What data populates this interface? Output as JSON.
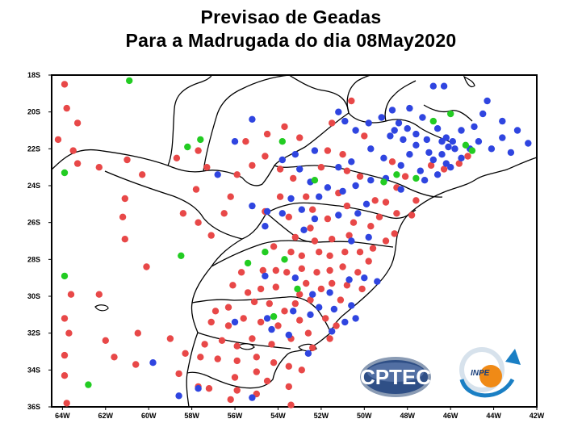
{
  "title": {
    "line1": "Previsao  de  Geadas",
    "line2": "Para a Madrugada do dia 08May2020"
  },
  "map": {
    "lat_ticks": [
      "18S",
      "20S",
      "22S",
      "24S",
      "26S",
      "28S",
      "30S",
      "32S",
      "34S",
      "36S"
    ],
    "lon_ticks": [
      "64W",
      "62W",
      "60W",
      "58W",
      "56W",
      "54W",
      "52W",
      "50W",
      "48W",
      "46W",
      "44W",
      "42W"
    ],
    "lat_range": [
      -36,
      -18
    ],
    "lon_range": [
      -64.5,
      -42
    ],
    "colors": {
      "red": "#e84848",
      "blue": "#2f45e0",
      "green": "#22cc22",
      "frame": "#000000"
    },
    "points": {
      "red": [
        [
          -63.9,
          -18.5
        ],
        [
          -63.8,
          -19.8
        ],
        [
          -63.3,
          -20.6
        ],
        [
          -64.2,
          -21.5
        ],
        [
          -63.5,
          -22.1
        ],
        [
          -63.3,
          -22.8
        ],
        [
          -62.3,
          -23.0
        ],
        [
          -61.0,
          -22.6
        ],
        [
          -60.3,
          -23.4
        ],
        [
          -61.1,
          -24.7
        ],
        [
          -61.2,
          -25.7
        ],
        [
          -61.1,
          -26.9
        ],
        [
          -60.1,
          -28.4
        ],
        [
          -63.6,
          -29.9
        ],
        [
          -62.3,
          -29.9
        ],
        [
          -63.9,
          -31.2
        ],
        [
          -63.7,
          -32.0
        ],
        [
          -62.0,
          -32.4
        ],
        [
          -63.9,
          -33.2
        ],
        [
          -63.9,
          -34.3
        ],
        [
          -60.5,
          -32.0
        ],
        [
          -61.6,
          -33.3
        ],
        [
          -60.6,
          -33.7
        ],
        [
          -59.0,
          -32.3
        ],
        [
          -58.3,
          -33.1
        ],
        [
          -58.6,
          -34.2
        ],
        [
          -57.7,
          -34.9
        ],
        [
          -63.8,
          -35.8
        ],
        [
          -58.7,
          -22.5
        ],
        [
          -57.7,
          -22.1
        ],
        [
          -57.3,
          -23.0
        ],
        [
          -57.8,
          -24.2
        ],
        [
          -58.4,
          -25.5
        ],
        [
          -57.7,
          -26.0
        ],
        [
          -57.1,
          -26.7
        ],
        [
          -56.5,
          -25.5
        ],
        [
          -56.2,
          -24.6
        ],
        [
          -55.9,
          -23.4
        ],
        [
          -55.2,
          -22.9
        ],
        [
          -55.5,
          -21.6
        ],
        [
          -54.5,
          -21.2
        ],
        [
          -54.6,
          -22.4
        ],
        [
          -53.7,
          -20.8
        ],
        [
          -53.0,
          -21.4
        ],
        [
          -51.5,
          -20.6
        ],
        [
          -50.6,
          -19.4
        ],
        [
          -53.9,
          -23.1
        ],
        [
          -53.3,
          -23.6
        ],
        [
          -53.9,
          -24.6
        ],
        [
          -54.6,
          -25.4
        ],
        [
          -53.5,
          -25.7
        ],
        [
          -52.7,
          -24.6
        ],
        [
          -52.4,
          -25.3
        ],
        [
          -52.5,
          -26.3
        ],
        [
          -51.7,
          -25.8
        ],
        [
          -51.2,
          -24.4
        ],
        [
          -50.8,
          -25.1
        ],
        [
          -50.5,
          -26.0
        ],
        [
          -50.2,
          -23.5
        ],
        [
          -51.0,
          -22.3
        ],
        [
          -50.8,
          -23.2
        ],
        [
          -50.0,
          -21.3
        ],
        [
          -49.5,
          -24.8
        ],
        [
          -49.0,
          -24.9
        ],
        [
          -48.5,
          -25.5
        ],
        [
          -49.3,
          -25.7
        ],
        [
          -49.7,
          -26.2
        ],
        [
          -50.7,
          -26.7
        ],
        [
          -51.5,
          -26.9
        ],
        [
          -52.3,
          -27.0
        ],
        [
          -53.2,
          -26.8
        ],
        [
          -54.2,
          -27.3
        ],
        [
          -53.4,
          -27.6
        ],
        [
          -52.9,
          -27.8
        ],
        [
          -52.1,
          -27.6
        ],
        [
          -51.6,
          -27.8
        ],
        [
          -50.9,
          -27.6
        ],
        [
          -50.2,
          -27.6
        ],
        [
          -49.6,
          -27.4
        ],
        [
          -49.0,
          -27.0
        ],
        [
          -48.6,
          -26.6
        ],
        [
          -55.7,
          -28.7
        ],
        [
          -54.7,
          -28.6
        ],
        [
          -54.1,
          -28.6
        ],
        [
          -53.6,
          -28.7
        ],
        [
          -52.9,
          -28.5
        ],
        [
          -52.2,
          -28.7
        ],
        [
          -51.6,
          -28.6
        ],
        [
          -51.0,
          -28.4
        ],
        [
          -50.3,
          -28.7
        ],
        [
          -49.8,
          -28.1
        ],
        [
          -56.1,
          -29.4
        ],
        [
          -55.4,
          -29.8
        ],
        [
          -54.8,
          -29.6
        ],
        [
          -54.1,
          -29.5
        ],
        [
          -52.7,
          -29.3
        ],
        [
          -52.0,
          -29.6
        ],
        [
          -51.5,
          -29.3
        ],
        [
          -50.8,
          -29.4
        ],
        [
          -50.1,
          -29.6
        ],
        [
          -55.1,
          -30.3
        ],
        [
          -54.4,
          -30.4
        ],
        [
          -53.7,
          -30.8
        ],
        [
          -52.5,
          -30.2
        ],
        [
          -51.1,
          -30.2
        ],
        [
          -56.3,
          -30.6
        ],
        [
          -56.9,
          -30.8
        ],
        [
          -57.1,
          -31.4
        ],
        [
          -56.3,
          -31.6
        ],
        [
          -55.6,
          -31.2
        ],
        [
          -54.8,
          -31.4
        ],
        [
          -54.0,
          -31.6
        ],
        [
          -53.0,
          -31.3
        ],
        [
          -52.6,
          -32.0
        ],
        [
          -53.4,
          -32.3
        ],
        [
          -54.3,
          -32.6
        ],
        [
          -55.2,
          -32.3
        ],
        [
          -55.9,
          -32.7
        ],
        [
          -56.6,
          -32.4
        ],
        [
          -57.4,
          -32.6
        ],
        [
          -57.6,
          -33.3
        ],
        [
          -56.8,
          -33.4
        ],
        [
          -55.9,
          -33.5
        ],
        [
          -55.0,
          -33.3
        ],
        [
          -54.2,
          -33.6
        ],
        [
          -53.5,
          -33.8
        ],
        [
          -56.0,
          -34.4
        ],
        [
          -55.0,
          -34.1
        ],
        [
          -54.5,
          -34.6
        ],
        [
          -55.9,
          -35.1
        ],
        [
          -55.0,
          -35.3
        ],
        [
          -53.5,
          -34.9
        ],
        [
          -52.9,
          -34.0
        ],
        [
          -57.2,
          -35.0
        ],
        [
          -56.2,
          -35.6
        ],
        [
          -53.4,
          -35.9
        ],
        [
          -46.3,
          -23.1
        ],
        [
          -46.9,
          -22.9
        ],
        [
          -45.6,
          -22.8
        ],
        [
          -45.2,
          -22.4
        ],
        [
          -47.6,
          -24.8
        ],
        [
          -48.1,
          -23.5
        ],
        [
          -48.7,
          -22.7
        ],
        [
          -51.7,
          -22.1
        ],
        [
          -52.0,
          -23.0
        ],
        [
          -47.8,
          -25.6
        ],
        [
          -48.5,
          -24.1
        ],
        [
          -53.2,
          -30.4
        ],
        [
          -53.0,
          -29.9
        ],
        [
          -51.8,
          -31.2
        ],
        [
          -52.4,
          -32.8
        ],
        [
          -51.6,
          -32.3
        ],
        [
          -51.3,
          -31.6
        ]
      ],
      "blue": [
        [
          -51.2,
          -20.0
        ],
        [
          -50.9,
          -20.5
        ],
        [
          -50.4,
          -21.0
        ],
        [
          -49.8,
          -20.6
        ],
        [
          -49.2,
          -20.3
        ],
        [
          -48.7,
          -19.9
        ],
        [
          -48.4,
          -20.6
        ],
        [
          -47.9,
          -19.8
        ],
        [
          -47.3,
          -20.3
        ],
        [
          -46.6,
          -20.9
        ],
        [
          -46.2,
          -21.4
        ],
        [
          -45.5,
          -21.0
        ],
        [
          -44.9,
          -20.8
        ],
        [
          -44.5,
          -20.1
        ],
        [
          -43.6,
          -20.5
        ],
        [
          -42.9,
          -21.0
        ],
        [
          -42.4,
          -21.7
        ],
        [
          -46.8,
          -18.6
        ],
        [
          -46.3,
          -18.6
        ],
        [
          -44.3,
          -19.4
        ],
        [
          -48.8,
          -21.3
        ],
        [
          -48.2,
          -21.5
        ],
        [
          -47.6,
          -21.8
        ],
        [
          -47.0,
          -22.2
        ],
        [
          -46.4,
          -22.3
        ],
        [
          -45.8,
          -22.0
        ],
        [
          -45.5,
          -22.5
        ],
        [
          -46.0,
          -23.0
        ],
        [
          -46.6,
          -23.4
        ],
        [
          -47.4,
          -23.2
        ],
        [
          -48.3,
          -22.9
        ],
        [
          -49.1,
          -22.5
        ],
        [
          -49.7,
          -22.0
        ],
        [
          -50.6,
          -22.7
        ],
        [
          -51.2,
          -23.0
        ],
        [
          -50.4,
          -24.0
        ],
        [
          -49.7,
          -23.7
        ],
        [
          -49.0,
          -23.6
        ],
        [
          -48.3,
          -24.2
        ],
        [
          -47.2,
          -23.7
        ],
        [
          -46.8,
          -22.6
        ],
        [
          -46.2,
          -22.8
        ],
        [
          -52.3,
          -22.1
        ],
        [
          -53.2,
          -22.3
        ],
        [
          -53.8,
          -22.6
        ],
        [
          -53.0,
          -23.1
        ],
        [
          -52.5,
          -23.8
        ],
        [
          -51.7,
          -24.1
        ],
        [
          -51.0,
          -24.3
        ],
        [
          -53.4,
          -24.7
        ],
        [
          -52.1,
          -24.6
        ],
        [
          -54.5,
          -25.4
        ],
        [
          -53.8,
          -25.5
        ],
        [
          -52.9,
          -25.3
        ],
        [
          -52.3,
          -25.8
        ],
        [
          -51.2,
          -25.6
        ],
        [
          -49.9,
          -25.0
        ],
        [
          -50.3,
          -25.5
        ],
        [
          -55.2,
          -20.4
        ],
        [
          -56.0,
          -21.6
        ],
        [
          -56.8,
          -23.4
        ],
        [
          -55.2,
          -25.1
        ],
        [
          -54.6,
          -26.2
        ],
        [
          -52.8,
          -26.4
        ],
        [
          -50.6,
          -27.0
        ],
        [
          -49.8,
          -26.8
        ],
        [
          -54.6,
          -28.9
        ],
        [
          -53.2,
          -29.0
        ],
        [
          -52.4,
          -29.9
        ],
        [
          -51.6,
          -29.8
        ],
        [
          -50.7,
          -29.1
        ],
        [
          -50.0,
          -29.0
        ],
        [
          -49.4,
          -29.2
        ],
        [
          -50.6,
          -30.5
        ],
        [
          -51.4,
          -30.7
        ],
        [
          -51.5,
          -31.9
        ],
        [
          -52.5,
          -31.0
        ],
        [
          -52.1,
          -30.6
        ],
        [
          -53.3,
          -30.8
        ],
        [
          -54.5,
          -31.2
        ],
        [
          -54.3,
          -31.8
        ],
        [
          -53.5,
          -32.1
        ],
        [
          -52.6,
          -33.1
        ],
        [
          -56.0,
          -31.4
        ],
        [
          -59.8,
          -33.6
        ],
        [
          -58.6,
          -35.4
        ],
        [
          -57.7,
          -35.0
        ],
        [
          -55.2,
          -35.5
        ],
        [
          -50.9,
          -31.4
        ],
        [
          -50.4,
          -31.2
        ],
        [
          -47.9,
          -22.3
        ],
        [
          -47.6,
          -21.2
        ],
        [
          -48.6,
          -21.0
        ],
        [
          -45.9,
          -21.6
        ],
        [
          -43.2,
          -22.2
        ],
        [
          -44.1,
          -22.0
        ],
        [
          -44.7,
          -21.6
        ],
        [
          -45.1,
          -22.0
        ],
        [
          -46.1,
          -21.9
        ],
        [
          -46.4,
          -21.6
        ],
        [
          -47.1,
          -21.5
        ],
        [
          -43.6,
          -21.4
        ],
        [
          -48.0,
          -20.9
        ]
      ],
      "green": [
        [
          -60.9,
          -18.3
        ],
        [
          -46.0,
          -20.1
        ],
        [
          -45.3,
          -21.8
        ],
        [
          -45.0,
          -22.1
        ],
        [
          -53.8,
          -21.6
        ],
        [
          -58.2,
          -21.9
        ],
        [
          -57.6,
          -21.5
        ],
        [
          -63.9,
          -23.3
        ],
        [
          -52.3,
          -23.7
        ],
        [
          -49.1,
          -23.8
        ],
        [
          -48.5,
          -23.4
        ],
        [
          -54.6,
          -27.6
        ],
        [
          -58.5,
          -27.8
        ],
        [
          -55.4,
          -28.2
        ],
        [
          -53.7,
          -28.0
        ],
        [
          -53.1,
          -29.6
        ],
        [
          -54.2,
          -31.1
        ],
        [
          -63.9,
          -28.9
        ],
        [
          -62.8,
          -34.8
        ],
        [
          -46.8,
          -20.5
        ],
        [
          -47.6,
          -23.6
        ]
      ]
    }
  },
  "logos": {
    "cptec": "CPTEC",
    "inpe": "INPE"
  }
}
